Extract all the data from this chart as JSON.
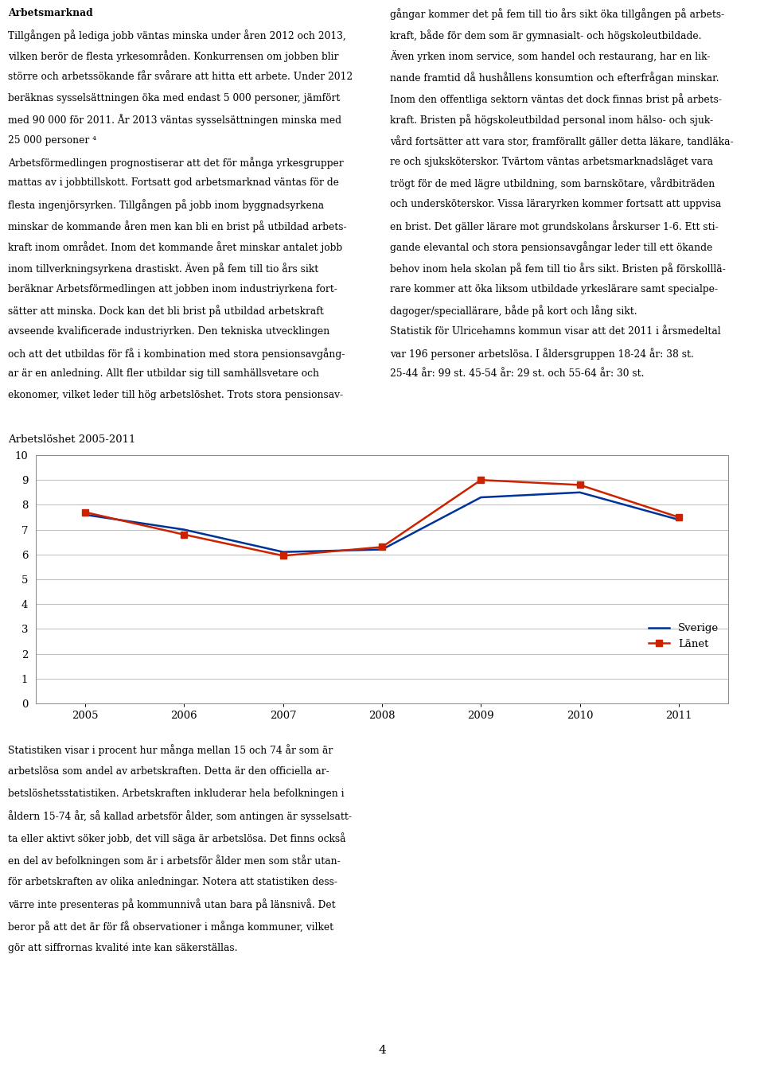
{
  "title": "Arbetslöshet 2005-2011",
  "years": [
    2005,
    2006,
    2007,
    2008,
    2009,
    2010,
    2011
  ],
  "sverige_values": [
    7.6,
    7.0,
    6.1,
    6.2,
    8.3,
    8.5,
    7.4
  ],
  "lanet_values": [
    7.7,
    6.8,
    5.95,
    6.3,
    9.0,
    8.8,
    7.5
  ],
  "sverige_color": "#003399",
  "lanet_color": "#CC2200",
  "ylim": [
    0,
    10
  ],
  "yticks": [
    0,
    1,
    2,
    3,
    4,
    5,
    6,
    7,
    8,
    9,
    10
  ],
  "legend_sverige": "Sverige",
  "legend_lanet": "Länet",
  "grid_color": "#bbbbbb",
  "page_number": "4",
  "left_lines": [
    [
      "Arbetsmarknad",
      true
    ],
    [
      "Tillgången på lediga jobb väntas minska under åren 2012 och 2013,",
      false
    ],
    [
      "vilken berör de flesta yrkesområden. Konkurrensen om jobben blir",
      false
    ],
    [
      "större och arbetssökande får svårare att hitta ett arbete. Under 2012",
      false
    ],
    [
      "beräknas sysselsättningen öka med endast 5 000 personer, jämfört",
      false
    ],
    [
      "med 90 000 för 2011. År 2013 väntas sysselsättningen minska med",
      false
    ],
    [
      "25 000 personer ⁴",
      false
    ],
    [
      "Arbetsförmedlingen prognostiserar att det för många yrkesgrupper",
      false
    ],
    [
      "mattas av i jobbtillskott. Fortsatt god arbetsmarknad väntas för de",
      false
    ],
    [
      "flesta ingenjörsyrken. Tillgången på jobb inom byggnadsyrkena",
      false
    ],
    [
      "minskar de kommande åren men kan bli en brist på utbildad arbets-",
      false
    ],
    [
      "kraft inom området. Inom det kommande året minskar antalet jobb",
      false
    ],
    [
      "inom tillverkningsyrkena drastiskt. Även på fem till tio års sikt",
      false
    ],
    [
      "beräknar Arbetsförmedlingen att jobben inom industriyrkena fort-",
      false
    ],
    [
      "sätter att minska. Dock kan det bli brist på utbildad arbetskraft",
      false
    ],
    [
      "avseende kvalificerade industriyrken. Den tekniska utvecklingen",
      false
    ],
    [
      "och att det utbildas för få i kombination med stora pensionsavgång-",
      false
    ],
    [
      "ar är en anledning. Allt fler utbildar sig till samhällsvetare och",
      false
    ],
    [
      "ekonomer, vilket leder till hög arbetslöshet. Trots stora pensionsav-",
      false
    ]
  ],
  "right_lines": [
    "gångar kommer det på fem till tio års sikt öka tillgången på arbets-",
    "kraft, både för dem som är gymnasialt- och högskoleutbildade.",
    "Även yrken inom service, som handel och restaurang, har en lik-",
    "nande framtid då hushållens konsumtion och efterfrågan minskar.",
    "Inom den offentliga sektorn väntas det dock finnas brist på arbets-",
    "kraft. Bristen på högskoleutbildad personal inom hälso- och sjuk-",
    "vård fortsätter att vara stor, framförallt gäller detta läkare, tandläka-",
    "re och sjuksköterskor. Tvärtom väntas arbetsmarknadsläget vara",
    "trögt för de med lägre utbildning, som barnskötare, vårdbiträden",
    "och undersköterskor. Vissa läraryrken kommer fortsatt att uppvisa",
    "en brist. Det gäller lärare mot grundskolans årskurser 1-6. Ett sti-",
    "gande elevantal och stora pensionsavgångar leder till ett ökande",
    "behov inom hela skolan på fem till tio års sikt. Bristen på förskolllä-",
    "rare kommer att öka liksom utbildade yrkeslärare samt specialpe-",
    "dagoger/speciallärare, både på kort och lång sikt.",
    "Statistik för Ulricehamns kommun visar att det 2011 i årsmedeltal",
    "var 196 personer arbetslösa. I åldersgruppen 18-24 år: 38 st.",
    "25-44 år: 99 st. 45-54 år: 29 st. och 55-64 år: 30 st."
  ],
  "bottom_lines": [
    "Statistiken visar i procent hur många mellan 15 och 74 år som är",
    "arbetslösa som andel av arbetskraften. Detta är den officiella ar-",
    "betslöshetsstatistiken. Arbetskraften inkluderar hela befolkningen i",
    "åldern 15-74 år, så kallad arbetsför ålder, som antingen är sysselsatt-",
    "ta eller aktivt söker jobb, det vill säga är arbetslösa. Det finns också",
    "en del av befolkningen som är i arbetsför ålder men som står utan-",
    "för arbetskraften av olika anledningar. Notera att statistiken dess-",
    "värre inte presenteras på kommunnivå utan bara på länsnivå. Det",
    "beror på att det är för få observationer i många kommuner, vilket",
    "gör att siffrornas kvalité inte kan säkerställas."
  ]
}
